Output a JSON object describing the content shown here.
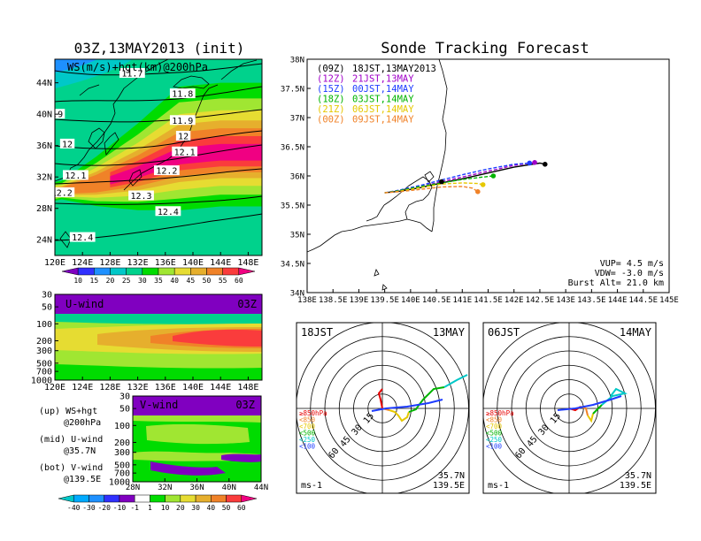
{
  "titles": {
    "left": "03Z,13MAY2013 (init)",
    "right": "Sonde Tracking Forecast"
  },
  "map_ws": {
    "label": "WS(m/s)+hgt(km)@200hPa",
    "xticks": [
      "120E",
      "124E",
      "128E",
      "132E",
      "136E",
      "140E",
      "144E",
      "148E"
    ],
    "yticks": [
      "24N",
      "28N",
      "32N",
      "36N",
      "40N",
      "44N"
    ],
    "colorbar": [
      "10",
      "15",
      "20",
      "25",
      "30",
      "35",
      "40",
      "45",
      "50",
      "55",
      "60"
    ],
    "colorbar_colors": [
      "#8000c0",
      "#3030ff",
      "#1e90ff",
      "#00c8c8",
      "#00d28c",
      "#00dc00",
      "#a0e632",
      "#e6dc32",
      "#e6af2d",
      "#f08228",
      "#fa3c3c",
      "#f00082"
    ],
    "contour_labels": [
      {
        "text": "11.7",
        "lon": 131.2,
        "lat": 45.2
      },
      {
        "text": "11.8",
        "lon": 138.5,
        "lat": 42.6
      },
      {
        "text": ".9",
        "lon": 120.4,
        "lat": 40.0
      },
      {
        "text": "11.9",
        "lon": 138.5,
        "lat": 39.2
      },
      {
        "text": "12",
        "lon": 121.8,
        "lat": 36.2
      },
      {
        "text": "12",
        "lon": 138.6,
        "lat": 37.2
      },
      {
        "text": "12.1",
        "lon": 138.8,
        "lat": 35.2
      },
      {
        "text": "12.1",
        "lon": 123.0,
        "lat": 32.2
      },
      {
        "text": "12.2",
        "lon": 136.2,
        "lat": 32.8
      },
      {
        "text": "12.2",
        "lon": 121.0,
        "lat": 30.0
      },
      {
        "text": "12.3",
        "lon": 132.5,
        "lat": 29.6
      },
      {
        "text": "12.4",
        "lon": 136.4,
        "lat": 27.6
      },
      {
        "text": "12.4",
        "lon": 124.0,
        "lat": 24.3
      }
    ]
  },
  "uwind": {
    "label": "U-wind",
    "time": "03Z",
    "yticks": [
      "30",
      "50",
      "100",
      "200",
      "300",
      "500",
      "700",
      "1000"
    ],
    "xticks": [
      "120E",
      "124E",
      "128E",
      "132E",
      "136E",
      "140E",
      "144E",
      "148E"
    ]
  },
  "vwind": {
    "label": "V-wind",
    "time": "03Z",
    "yticks": [
      "30",
      "50",
      "100",
      "200",
      "300",
      "500",
      "700",
      "1000"
    ],
    "xticks": [
      "28N",
      "32N",
      "36N",
      "40N",
      "44N"
    ],
    "colorbar": [
      "-40",
      "-30",
      "-20",
      "-10",
      "-1",
      "1",
      "10",
      "20",
      "30",
      "40",
      "50",
      "60"
    ],
    "colorbar_colors": [
      "#00c8c8",
      "#00aaff",
      "#1e90ff",
      "#3030ff",
      "#8000c0",
      "#ffffff",
      "#00dc00",
      "#a0e632",
      "#e6dc32",
      "#e6af2d",
      "#f08228",
      "#fa3c3c",
      "#f00082"
    ]
  },
  "legend_notes": [
    {
      "text": "(up) WS+hgt"
    },
    {
      "text": "@200hPa"
    },
    {
      "text": "(mid) U-wind"
    },
    {
      "text": "@35.7N"
    },
    {
      "text": "(bot) V-wind"
    },
    {
      "text": "@139.5E"
    }
  ],
  "track": {
    "xticks": [
      "138E",
      "138.5E",
      "139E",
      "139.5E",
      "140E",
      "140.5E",
      "141E",
      "141.5E",
      "142E",
      "142.5E",
      "143E",
      "143.5E",
      "144E",
      "144.5E",
      "145E"
    ],
    "yticks": [
      "34N",
      "34.5N",
      "35N",
      "35.5N",
      "36N",
      "36.5N",
      "37N",
      "37.5N",
      "38N"
    ],
    "legend": [
      {
        "utc": "(09Z)",
        "jst": "18JST,13MAY2013",
        "color": "#000000"
      },
      {
        "utc": "(12Z)",
        "jst": "21JST,13MAY",
        "color": "#a000c8"
      },
      {
        "utc": "(15Z)",
        "jst": "00JST,14MAY",
        "color": "#1e3cff"
      },
      {
        "utc": "(18Z)",
        "jst": "03JST,14MAY",
        "color": "#00b400"
      },
      {
        "utc": "(21Z)",
        "jst": "06JST,14MAY",
        "color": "#e6c800"
      },
      {
        "utc": "(00Z)",
        "jst": "09JST,14MAY",
        "color": "#f08228"
      }
    ],
    "params": [
      "VUP= 4.5 m/s",
      "VDW= -3.0 m/s",
      "Burst Alt= 21.0 km"
    ],
    "xlim": [
      138,
      145
    ],
    "ylim": [
      34,
      38
    ]
  },
  "hodo_left": {
    "time": "18JST",
    "date": "13MAY",
    "lat": "35.7N",
    "lon": "139.5E",
    "unit": "ms-1"
  },
  "hodo_right": {
    "time": "06JST",
    "date": "14MAY",
    "lat": "35.7N",
    "lon": "139.5E",
    "unit": "ms-1"
  },
  "hodo_rings": [
    "15",
    "30",
    "45",
    "60"
  ],
  "hodo_levels": [
    {
      "label": "≥850hPa",
      "color": "#e60000"
    },
    {
      "label": "<850",
      "color": "#f08228"
    },
    {
      "label": "<700",
      "color": "#e6c800"
    },
    {
      "label": "<500",
      "color": "#00b400"
    },
    {
      "label": "<250",
      "color": "#00c8c8"
    },
    {
      "label": "<100",
      "color": "#1e3cff"
    }
  ],
  "chart_data": [
    {
      "type": "heatmap",
      "title": "03Z,13MAY2013 (init)",
      "subtitle": "WS(m/s)+hgt(km)@200hPa",
      "xlim": [
        120,
        150
      ],
      "ylim": [
        22,
        47
      ],
      "jet_core_lat_by_lon": [
        [
          120,
          30
        ],
        [
          126,
          31
        ],
        [
          132,
          32.5
        ],
        [
          138,
          34.5
        ],
        [
          144,
          35
        ],
        [
          150,
          35
        ]
      ],
      "jet_max_speed": 60
    },
    {
      "type": "heatmap",
      "title": "U-wind",
      "subtitle": "03Z",
      "xlim": [
        120,
        150
      ],
      "ylim": [
        1000,
        30
      ],
      "jet_core": {
        "lon": [
          140,
          150
        ],
        "pressure": 200
      }
    },
    {
      "type": "heatmap",
      "title": "V-wind",
      "subtitle": "03Z",
      "xlim": [
        28,
        44
      ],
      "ylim": [
        1000,
        30
      ]
    },
    {
      "type": "line",
      "title": "Sonde Tracking Forecast",
      "xlim": [
        138,
        145
      ],
      "ylim": [
        34,
        38
      ],
      "series": [
        {
          "name": "(09Z)",
          "x": [
            139.5,
            139.8,
            140.2,
            140.6,
            141.0,
            141.5,
            142.0,
            142.5,
            142.6
          ],
          "y": [
            35.71,
            35.74,
            35.8,
            35.88,
            35.95,
            36.05,
            36.15,
            36.22,
            36.2
          ]
        },
        {
          "name": "(12Z)",
          "x": [
            139.5,
            139.8,
            140.2,
            140.6,
            141.0,
            141.5,
            142.0,
            142.4
          ],
          "y": [
            35.71,
            35.75,
            35.82,
            35.9,
            35.98,
            36.08,
            36.18,
            36.23
          ]
        },
        {
          "name": "(15Z)",
          "x": [
            139.5,
            139.8,
            140.2,
            140.6,
            141.0,
            141.5,
            142.0,
            142.3
          ],
          "y": [
            35.71,
            35.76,
            35.84,
            35.93,
            36.02,
            36.12,
            36.2,
            36.22
          ]
        },
        {
          "name": "(18Z)",
          "x": [
            139.5,
            139.8,
            140.2,
            140.6,
            141.0,
            141.4,
            141.6
          ],
          "y": [
            35.71,
            35.75,
            35.82,
            35.88,
            35.94,
            35.98,
            36.0
          ]
        },
        {
          "name": "(21Z)",
          "x": [
            139.5,
            139.8,
            140.2,
            140.6,
            141.0,
            141.3,
            141.4
          ],
          "y": [
            35.71,
            35.74,
            35.8,
            35.86,
            35.88,
            35.87,
            35.85
          ]
        },
        {
          "name": "(00Z)",
          "x": [
            139.5,
            139.8,
            140.2,
            140.6,
            141.0,
            141.2,
            141.3
          ],
          "y": [
            35.71,
            35.73,
            35.77,
            35.81,
            35.82,
            35.79,
            35.73
          ]
        }
      ]
    }
  ]
}
